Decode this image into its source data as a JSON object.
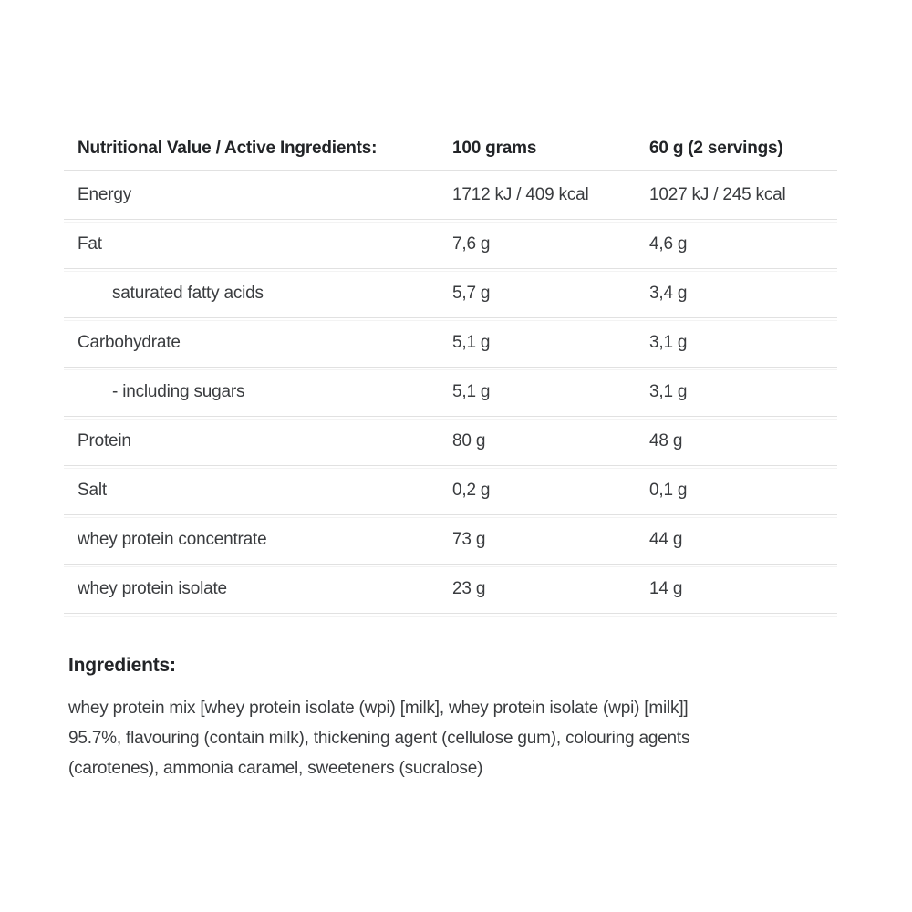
{
  "table": {
    "columns": [
      {
        "label": "Nutritional Value / Active Ingredients:"
      },
      {
        "label": "100 grams"
      },
      {
        "label": "60 g (2 servings)"
      }
    ],
    "rows": [
      {
        "label": "Energy",
        "indent": false,
        "per_100g": "1712 kJ / 409 kcal",
        "per_serving": "1027 kJ / 245 kcal"
      },
      {
        "label": "Fat",
        "indent": false,
        "per_100g": "7,6 g",
        "per_serving": "4,6 g"
      },
      {
        "label": "saturated fatty acids",
        "indent": true,
        "per_100g": "5,7 g",
        "per_serving": "3,4 g"
      },
      {
        "label": "Carbohydrate",
        "indent": false,
        "per_100g": "5,1 g",
        "per_serving": "3,1 g"
      },
      {
        "label": "- including sugars",
        "indent": true,
        "per_100g": "5,1 g",
        "per_serving": "3,1 g"
      },
      {
        "label": "Protein",
        "indent": false,
        "per_100g": "80 g",
        "per_serving": "48 g"
      },
      {
        "label": "Salt",
        "indent": false,
        "per_100g": "0,2 g",
        "per_serving": "0,1 g"
      },
      {
        "label": "whey protein concentrate",
        "indent": false,
        "per_100g": "73 g",
        "per_serving": "44 g"
      },
      {
        "label": "whey protein isolate",
        "indent": false,
        "per_100g": "23 g",
        "per_serving": "14 g"
      }
    ]
  },
  "ingredients": {
    "heading": "Ingredients:",
    "lines": [
      "whey protein mix [whey protein isolate (wpi) [milk], whey protein isolate (wpi) [milk]]",
      "95.7%, flavouring (contain milk), thickening agent (cellulose gum), colouring agents",
      "(carotenes), ammonia caramel, sweeteners (sucralose)"
    ]
  },
  "colors": {
    "background": "#ffffff",
    "body_text": "#3a3c3f",
    "heading_text": "#222427",
    "divider": "#e1e1e1",
    "divider_faint": "#f3f3f3"
  }
}
